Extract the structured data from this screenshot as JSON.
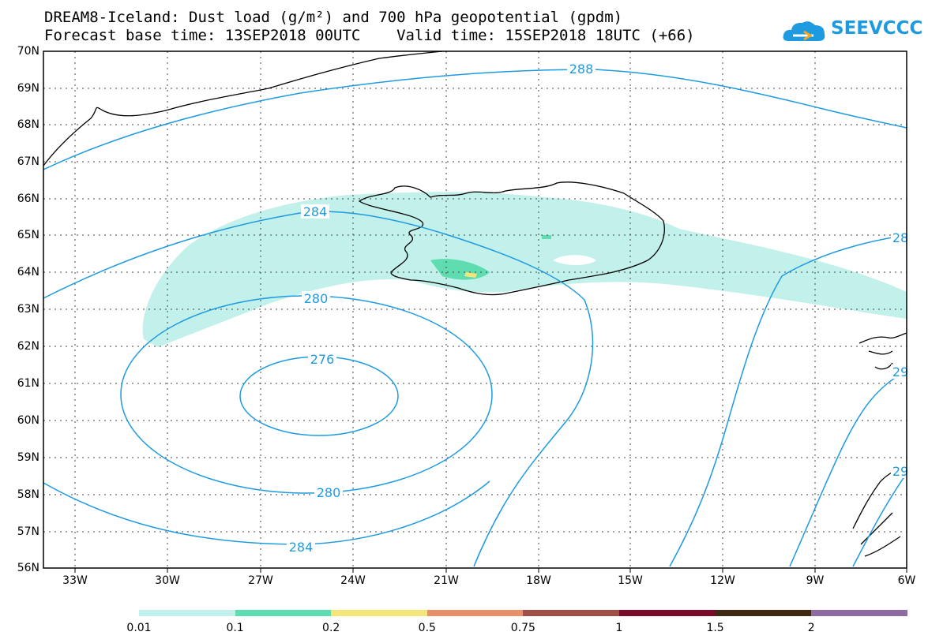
{
  "title_line1": "DREAM8-Iceland: Dust load (g/m²) and 700 hPa geopotential (gpdm)",
  "title_line2": "Forecast base time: 13SEP2018 00UTC    Valid time: 15SEP2018 18UTC (+66)",
  "logo": {
    "text": "SEEVCCC",
    "icon": "cloud-icon",
    "color": "#1e9be0"
  },
  "map": {
    "lat_labels": [
      "70N",
      "69N",
      "68N",
      "67N",
      "66N",
      "65N",
      "64N",
      "63N",
      "62N",
      "61N",
      "60N",
      "59N",
      "58N",
      "57N",
      "56N"
    ],
    "lon_labels": [
      "33W",
      "30W",
      "27W",
      "24W",
      "21W",
      "18W",
      "15W",
      "12W",
      "9W",
      "6W"
    ],
    "lat_range": [
      56,
      70
    ],
    "lon_range": [
      -34.5,
      -6
    ],
    "contour_color": "#1e9be0",
    "contour_labels": [
      "288",
      "284",
      "280",
      "276",
      "280",
      "284",
      "28",
      "29",
      "29"
    ]
  },
  "legend": {
    "labels": [
      "0.01",
      "0.1",
      "0.2",
      "0.5",
      "0.75",
      "1",
      "1.5",
      "2"
    ],
    "colors": [
      "#c2f0ea",
      "#5fdcb0",
      "#f5e67a",
      "#e8906a",
      "#a05048",
      "#7a0a2a",
      "#3e2a14",
      "#8c6ca2"
    ]
  }
}
